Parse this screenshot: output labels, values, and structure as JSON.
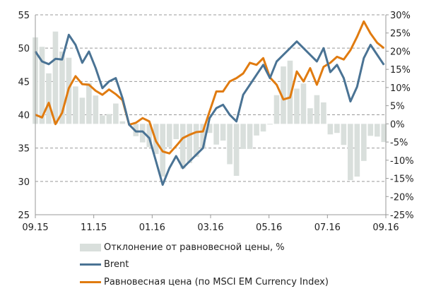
{
  "chart_data": {
    "type": "bar+line",
    "x_ticks": [
      "09.15",
      "11.15",
      "01.16",
      "03.16",
      "05.16",
      "07.16",
      "09.16"
    ],
    "x_range": [
      "2015-09-01",
      "2016-09-01"
    ],
    "y_left": {
      "range": [
        25,
        55
      ],
      "ticks": [
        "25",
        "30",
        "35",
        "40",
        "45",
        "50",
        "55"
      ]
    },
    "y_right": {
      "range": [
        -25,
        30
      ],
      "ticks": [
        "-25%",
        "-20%",
        "-15%",
        "-10%",
        "-5%",
        "0%",
        "5%",
        "10%",
        "15%",
        "20%",
        "25%",
        "30%"
      ]
    },
    "grid": "horizontal dashed",
    "legend_position": "bottom",
    "x": [
      "2015-09-01",
      "2015-09-08",
      "2015-09-15",
      "2015-09-22",
      "2015-09-29",
      "2015-10-06",
      "2015-10-13",
      "2015-10-20",
      "2015-10-27",
      "2015-11-03",
      "2015-11-10",
      "2015-11-17",
      "2015-11-24",
      "2015-12-01",
      "2015-12-08",
      "2015-12-15",
      "2015-12-22",
      "2015-12-29",
      "2016-01-05",
      "2016-01-12",
      "2016-01-19",
      "2016-01-26",
      "2016-02-02",
      "2016-02-09",
      "2016-02-16",
      "2016-02-23",
      "2016-03-01",
      "2016-03-08",
      "2016-03-15",
      "2016-03-22",
      "2016-03-29",
      "2016-04-05",
      "2016-04-12",
      "2016-04-19",
      "2016-04-26",
      "2016-05-03",
      "2016-05-10",
      "2016-05-17",
      "2016-05-24",
      "2016-05-31",
      "2016-06-07",
      "2016-06-14",
      "2016-06-21",
      "2016-06-28",
      "2016-07-05",
      "2016-07-12",
      "2016-07-19",
      "2016-07-26",
      "2016-08-02",
      "2016-08-09",
      "2016-08-16",
      "2016-08-23",
      "2016-08-30"
    ],
    "series": [
      {
        "name": "Отклонение от равновесной цены, %",
        "type": "bar",
        "axis": "right",
        "color": "#d9dfdc",
        "values": [
          23.8,
          21.2,
          13.9,
          25.4,
          19.9,
          18.2,
          10.3,
          7.2,
          11.2,
          7.8,
          2.3,
          2.7,
          5.6,
          0.7,
          0,
          -3.4,
          -5.1,
          -6.4,
          -8.3,
          -14.5,
          -6.4,
          -4.2,
          -12.3,
          -10.8,
          -9.1,
          -6.7,
          -2.5,
          -5.7,
          -4.6,
          -11.1,
          -14.3,
          -6.9,
          -6.9,
          -3.2,
          -2.1,
          -0.2,
          7.9,
          15.8,
          17.4,
          9.7,
          11.1,
          4.3,
          7.9,
          5.9,
          -2.9,
          -2.5,
          -5.8,
          -15.5,
          -14.5,
          -10.2,
          -3.3,
          -3.5,
          -5
        ]
      },
      {
        "name": "Brent",
        "type": "line",
        "axis": "left",
        "color": "#4a7394",
        "values": [
          49.5,
          48,
          47.6,
          48.4,
          48.3,
          52,
          50.5,
          47.8,
          49.5,
          47,
          44,
          45,
          45.5,
          42.5,
          38.5,
          37.5,
          37.5,
          36.5,
          33,
          29.5,
          32,
          33.8,
          32,
          33,
          34,
          35,
          39.5,
          41,
          41.5,
          40,
          39,
          43,
          44.5,
          46,
          47.5,
          45.5,
          48,
          49,
          50,
          51,
          50,
          49,
          48,
          50,
          46.4,
          47.5,
          45.5,
          42,
          44.2,
          48.5,
          50.5,
          49,
          47.5
        ]
      },
      {
        "name": "Равновесная цена (по MSCI EM Currency Index)",
        "type": "line",
        "axis": "left",
        "color": "#e07b10",
        "values": [
          40,
          39.6,
          41.8,
          38.6,
          40.3,
          44,
          45.8,
          44.6,
          44.5,
          43.6,
          43,
          43.8,
          43.1,
          42.2,
          38.5,
          38.8,
          39.5,
          39,
          36,
          34.5,
          34.2,
          35.3,
          36.5,
          37,
          37.4,
          37.5,
          40.5,
          43.5,
          43.5,
          45,
          45.5,
          46.2,
          47.8,
          47.5,
          48.5,
          45.6,
          44.5,
          42.3,
          42.6,
          46.5,
          45,
          47,
          44.5,
          47.2,
          47.8,
          48.7,
          48.3,
          49.7,
          51.7,
          54,
          52.2,
          50.8,
          50
        ]
      }
    ]
  }
}
